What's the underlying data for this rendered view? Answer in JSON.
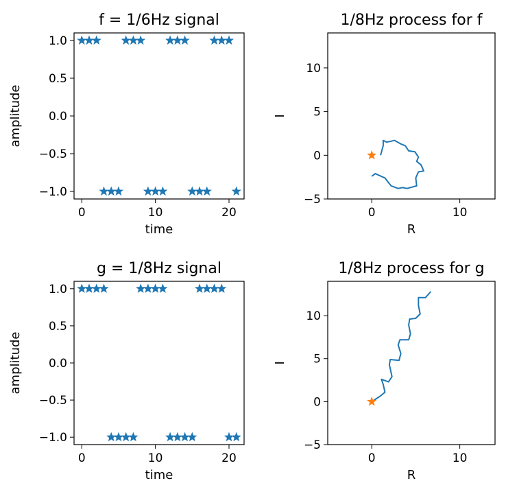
{
  "colors": {
    "series": "#1f77b4",
    "origin_marker": "#ff7f0e",
    "frame": "#000000"
  },
  "chart_data": [
    {
      "type": "scatter",
      "title": "f = 1/6Hz signal",
      "xlabel": "time",
      "ylabel": "amplitude",
      "xlim": [
        -1.05,
        22.05
      ],
      "ylim": [
        -1.1,
        1.1
      ],
      "xticks": [
        0,
        10,
        20
      ],
      "xtick_labels": [
        "0",
        "10",
        "20"
      ],
      "yticks": [
        1.0,
        0.5,
        0.0,
        -0.5,
        -1.0
      ],
      "ytick_labels": [
        "1.0",
        "0.5",
        "0.0",
        "−0.5",
        "−1.0"
      ],
      "marker": "star",
      "series": [
        {
          "x": [
            0,
            1,
            2,
            3,
            4,
            5,
            6,
            7,
            8,
            9,
            10,
            11,
            12,
            13,
            14,
            15,
            16,
            17,
            18,
            19,
            20,
            21
          ],
          "y": [
            1,
            1,
            1,
            -1,
            -1,
            -1,
            1,
            1,
            1,
            -1,
            -1,
            -1,
            1,
            1,
            1,
            -1,
            -1,
            -1,
            1,
            1,
            1,
            -1
          ]
        }
      ]
    },
    {
      "type": "line",
      "title": "1/8Hz process for f",
      "xlabel": "R",
      "ylabel": "I",
      "xlim": [
        -5,
        14
      ],
      "ylim": [
        -5,
        14
      ],
      "xticks": [
        0,
        10
      ],
      "xtick_labels": [
        "0",
        "10"
      ],
      "yticks": [
        10,
        5,
        0,
        -5
      ],
      "ytick_labels": [
        "10",
        "5",
        "0",
        "−5"
      ],
      "series": [
        {
          "x": [
            1.0,
            1.3,
            1.3,
            1.7,
            2.6,
            3.3,
            3.8,
            4.2,
            4.9,
            5.3,
            5.1,
            5.6,
            5.9,
            5.3,
            5.0,
            5.1,
            4.0,
            3.5,
            3.0,
            2.2,
            1.8,
            1.5,
            0.4,
            0.0
          ],
          "y": [
            0.0,
            1.1,
            1.7,
            1.5,
            1.7,
            1.3,
            1.1,
            0.5,
            0.4,
            -0.2,
            -0.7,
            -1.1,
            -1.8,
            -1.9,
            -2.6,
            -3.5,
            -3.8,
            -3.7,
            -3.8,
            -3.5,
            -3.0,
            -2.6,
            -2.1,
            -2.4
          ]
        }
      ],
      "origin_marker": {
        "x": [
          0
        ],
        "y": [
          0
        ]
      }
    },
    {
      "type": "scatter",
      "title": "g = 1/8Hz signal",
      "xlabel": "time",
      "ylabel": "amplitude",
      "xlim": [
        -1.05,
        22.05
      ],
      "ylim": [
        -1.1,
        1.1
      ],
      "xticks": [
        0,
        10,
        20
      ],
      "xtick_labels": [
        "0",
        "10",
        "20"
      ],
      "yticks": [
        1.0,
        0.5,
        0.0,
        -0.5,
        -1.0
      ],
      "ytick_labels": [
        "1.0",
        "0.5",
        "0.0",
        "−0.5",
        "−1.0"
      ],
      "marker": "star",
      "series": [
        {
          "x": [
            0,
            1,
            2,
            3,
            4,
            5,
            6,
            7,
            8,
            9,
            10,
            11,
            12,
            13,
            14,
            15,
            16,
            17,
            18,
            19,
            20,
            21
          ],
          "y": [
            1,
            1,
            1,
            1,
            -1,
            -1,
            -1,
            -1,
            1,
            1,
            1,
            1,
            -1,
            -1,
            -1,
            -1,
            1,
            1,
            1,
            1,
            -1,
            -1
          ]
        }
      ]
    },
    {
      "type": "line",
      "title": "1/8Hz process for g",
      "xlabel": "R",
      "ylabel": "I",
      "xlim": [
        -5,
        14
      ],
      "ylim": [
        -5,
        14
      ],
      "xticks": [
        0,
        10
      ],
      "xtick_labels": [
        "0",
        "10"
      ],
      "yticks": [
        10,
        5,
        0,
        -5
      ],
      "ytick_labels": [
        "10",
        "5",
        "0",
        "−5"
      ],
      "series": [
        {
          "x": [
            0.0,
            0.9,
            1.5,
            1.3,
            1.1,
            1.9,
            2.3,
            2.0,
            2.1,
            3.1,
            3.3,
            3.0,
            3.2,
            4.2,
            4.4,
            4.2,
            4.3,
            5.0,
            5.5,
            5.3,
            5.3,
            6.1,
            6.7
          ],
          "y": [
            0.0,
            0.6,
            1.1,
            2.0,
            2.6,
            2.3,
            2.9,
            4.3,
            4.9,
            4.8,
            5.6,
            6.6,
            7.2,
            7.2,
            7.9,
            8.9,
            9.6,
            9.7,
            10.2,
            11.2,
            12.1,
            12.1,
            12.8
          ]
        }
      ],
      "origin_marker": {
        "x": [
          0
        ],
        "y": [
          0
        ]
      }
    }
  ]
}
